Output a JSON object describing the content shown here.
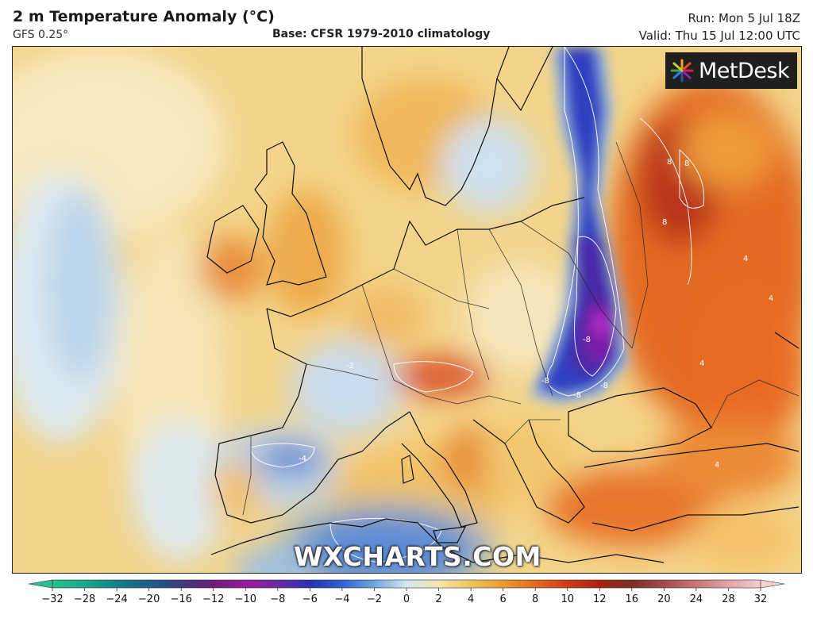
{
  "header": {
    "title": "2 m Temperature Anomaly (°C)",
    "model": "GFS 0.25°",
    "base": "Base: CFSR 1979-2010 climatology",
    "run": "Run: Mon 5 Jul 18Z",
    "valid": "Valid: Thu 15 Jul 12:00 UTC"
  },
  "logo": {
    "text": "MetDesk",
    "icon": "metdesk-starburst-icon"
  },
  "watermark": "WXCHARTS.COM",
  "colorbar": {
    "ticks": [
      "−32",
      "−28",
      "−24",
      "−20",
      "−16",
      "−12",
      "−10",
      "−8",
      "−6",
      "−4",
      "−2",
      "0",
      "2",
      "4",
      "6",
      "8",
      "10",
      "12",
      "16",
      "20",
      "24",
      "28",
      "32"
    ],
    "colors": [
      "#27c28f",
      "#1aa88a",
      "#13808a",
      "#1c5f86",
      "#3c3b7e",
      "#6a1f78",
      "#9c1a9c",
      "#6a2ca0",
      "#2a2fb4",
      "#2f63d0",
      "#6da5de",
      "#d3e7f3",
      "#f4e6ad",
      "#f2c25a",
      "#ec9a2f",
      "#e56a1e",
      "#cf3a14",
      "#a8230f",
      "#7a2f25",
      "#a44a4a",
      "#c97676",
      "#e2a3a3",
      "#f4cfcf"
    ]
  },
  "contour_labels": [
    "-8",
    "-8",
    "-8",
    "-8",
    "8",
    "8",
    "8",
    "4",
    "4",
    "4",
    "-4",
    "4",
    "-2"
  ]
}
